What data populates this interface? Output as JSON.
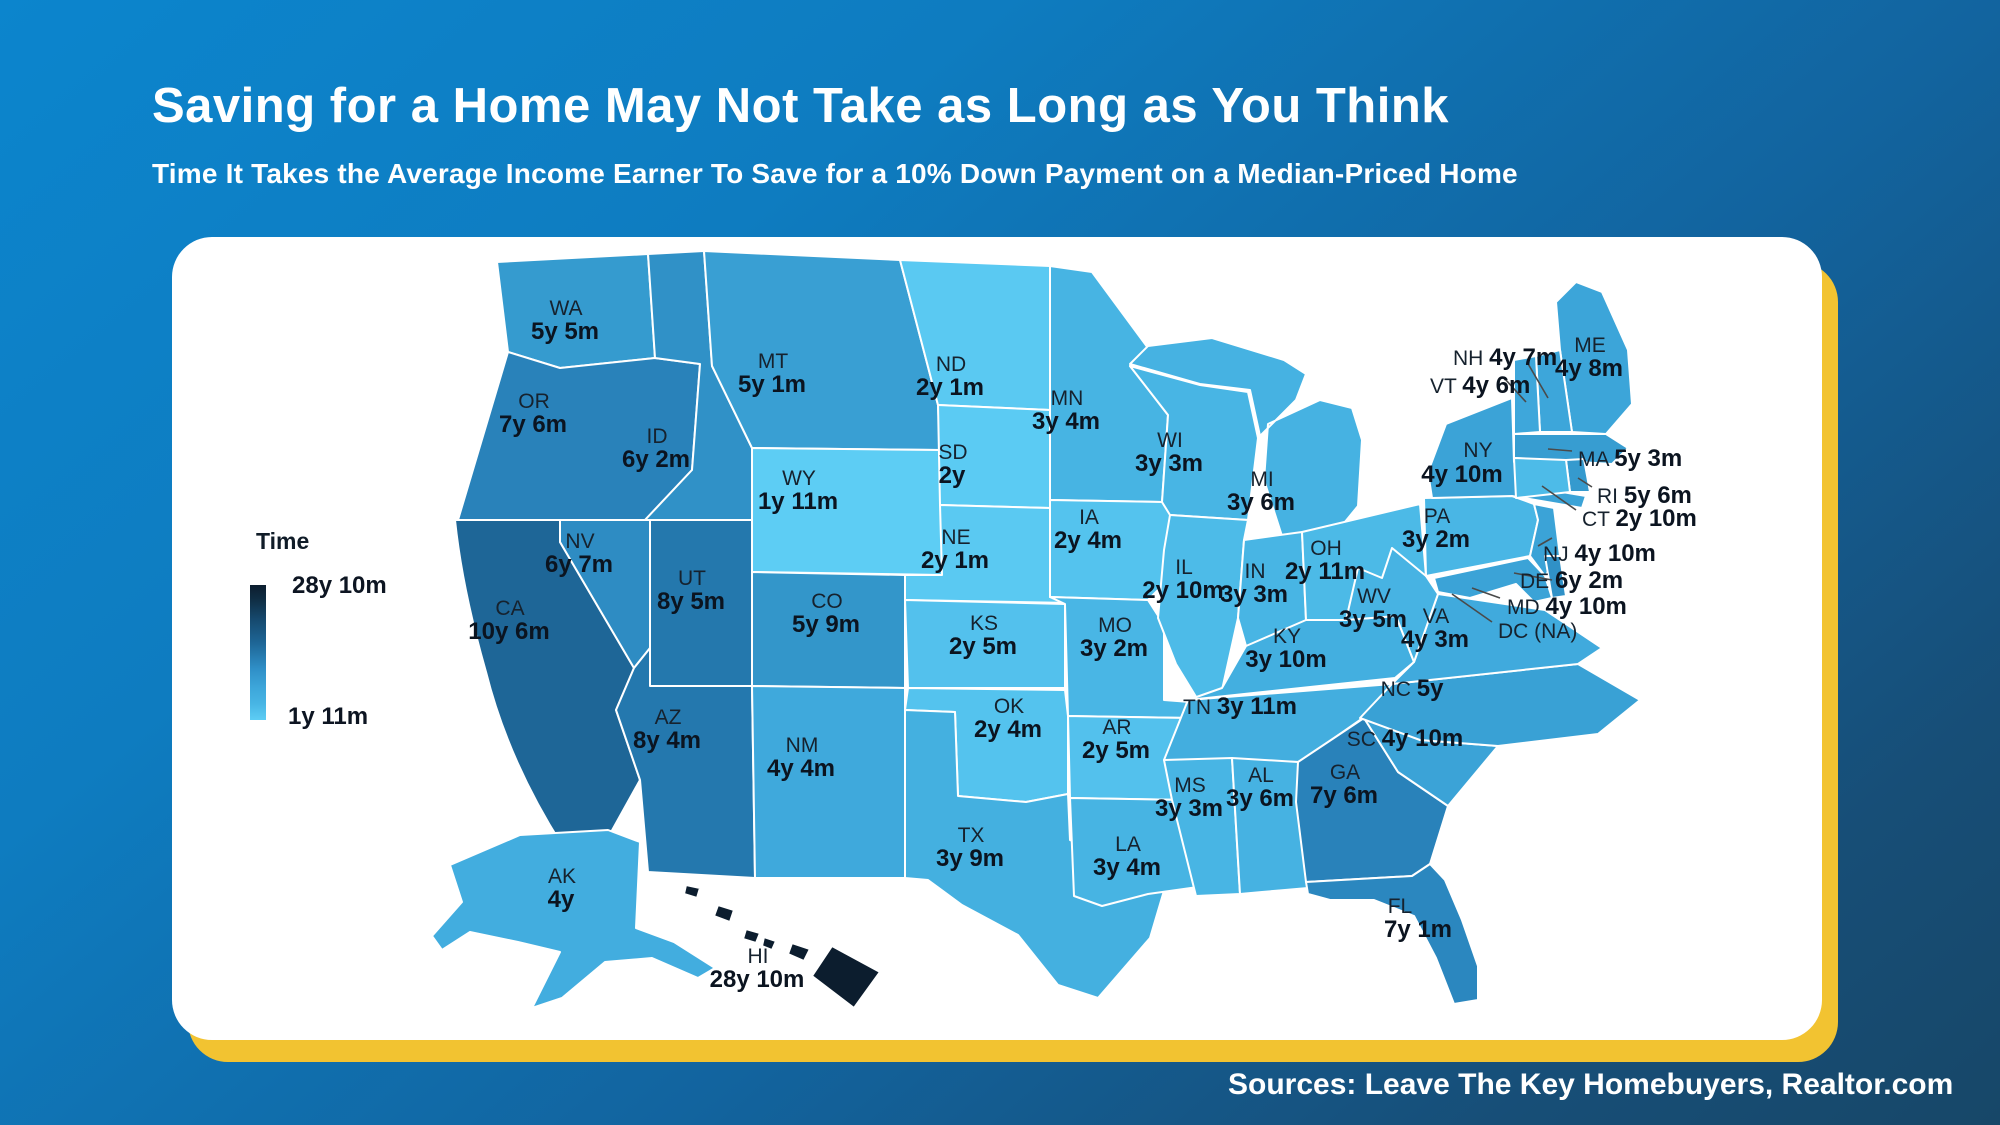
{
  "title": "Saving for a Home May Not Take as Long as You Think",
  "subtitle": "Time It Takes the Average Income Earner To Save for a 10% Down Payment on a Median-Priced Home",
  "source": "Sources: Leave The Key Homebuyers, Realtor.com",
  "legend": {
    "label": "Time",
    "max": "28y 10m",
    "min": "1y 11m"
  },
  "colors": {
    "background_top": "#0c85cd",
    "background_bottom": "#174768",
    "card": "#ffffff",
    "accent_yellow": "#f2c331",
    "label_dark": "#101c28",
    "state_border": "#ffffff",
    "callout_line": "#4a4a4a",
    "scale_domain_years": [
      1.9167,
      28.8333
    ],
    "scale_stops": [
      [
        0,
        "#5dcdf4"
      ],
      [
        0.02,
        "#52c0ec"
      ],
      [
        0.05,
        "#48b5e4"
      ],
      [
        0.1,
        "#3da6da"
      ],
      [
        0.14,
        "#3397cb"
      ],
      [
        0.2,
        "#2a84bd"
      ],
      [
        0.24,
        "#2478ad"
      ],
      [
        0.33,
        "#1d6494"
      ],
      [
        0.5,
        "#164a6f"
      ],
      [
        0.75,
        "#0f2c42"
      ],
      [
        1,
        "#0c1d2e"
      ]
    ]
  },
  "chart_data": {
    "type": "choropleth-map",
    "region": "United States",
    "title": "Time It Takes the Average Income Earner To Save for a 10% Down Payment on a Median-Priced Home",
    "legend_label": "Time",
    "value_range": {
      "min": "1y 11m",
      "max": "28y 10m"
    },
    "states": [
      {
        "abbr": "WA",
        "value": "5y 5m"
      },
      {
        "abbr": "OR",
        "value": "7y 6m"
      },
      {
        "abbr": "CA",
        "value": "10y 6m"
      },
      {
        "abbr": "NV",
        "value": "6y 7m"
      },
      {
        "abbr": "ID",
        "value": "6y 2m"
      },
      {
        "abbr": "MT",
        "value": "5y 1m"
      },
      {
        "abbr": "WY",
        "value": "1y 11m"
      },
      {
        "abbr": "UT",
        "value": "8y 5m"
      },
      {
        "abbr": "CO",
        "value": "5y 9m"
      },
      {
        "abbr": "AZ",
        "value": "8y 4m"
      },
      {
        "abbr": "NM",
        "value": "4y 4m"
      },
      {
        "abbr": "ND",
        "value": "2y 1m"
      },
      {
        "abbr": "SD",
        "value": "2y"
      },
      {
        "abbr": "NE",
        "value": "2y 1m"
      },
      {
        "abbr": "KS",
        "value": "2y 5m"
      },
      {
        "abbr": "OK",
        "value": "2y 4m"
      },
      {
        "abbr": "TX",
        "value": "3y 9m"
      },
      {
        "abbr": "MN",
        "value": "3y 4m"
      },
      {
        "abbr": "IA",
        "value": "2y 4m"
      },
      {
        "abbr": "MO",
        "value": "3y 2m"
      },
      {
        "abbr": "AR",
        "value": "2y 5m"
      },
      {
        "abbr": "LA",
        "value": "3y 4m"
      },
      {
        "abbr": "WI",
        "value": "3y 3m"
      },
      {
        "abbr": "IL",
        "value": "2y 10m"
      },
      {
        "abbr": "MI",
        "value": "3y 6m"
      },
      {
        "abbr": "IN",
        "value": "3y 3m"
      },
      {
        "abbr": "OH",
        "value": "2y 11m"
      },
      {
        "abbr": "KY",
        "value": "3y 10m"
      },
      {
        "abbr": "TN",
        "value": "3y 11m"
      },
      {
        "abbr": "MS",
        "value": "3y 3m"
      },
      {
        "abbr": "AL",
        "value": "3y 6m"
      },
      {
        "abbr": "GA",
        "value": "7y 6m"
      },
      {
        "abbr": "FL",
        "value": "7y 1m"
      },
      {
        "abbr": "SC",
        "value": "4y 10m"
      },
      {
        "abbr": "NC",
        "value": "5y"
      },
      {
        "abbr": "VA",
        "value": "4y 3m"
      },
      {
        "abbr": "WV",
        "value": "3y 5m"
      },
      {
        "abbr": "PA",
        "value": "3y 2m"
      },
      {
        "abbr": "NY",
        "value": "4y 10m"
      },
      {
        "abbr": "ME",
        "value": "4y 8m"
      },
      {
        "abbr": "NH",
        "value": "4y 7m"
      },
      {
        "abbr": "VT",
        "value": "4y 6m"
      },
      {
        "abbr": "MA",
        "value": "5y 3m"
      },
      {
        "abbr": "RI",
        "value": "5y 6m"
      },
      {
        "abbr": "CT",
        "value": "2y 10m"
      },
      {
        "abbr": "NJ",
        "value": "4y 10m"
      },
      {
        "abbr": "DE",
        "value": "6y 2m"
      },
      {
        "abbr": "MD",
        "value": "4y 10m"
      },
      {
        "abbr": "DC",
        "value": "(NA)"
      },
      {
        "abbr": "AK",
        "value": "4y"
      },
      {
        "abbr": "HI",
        "value": "28y 10m"
      }
    ]
  }
}
